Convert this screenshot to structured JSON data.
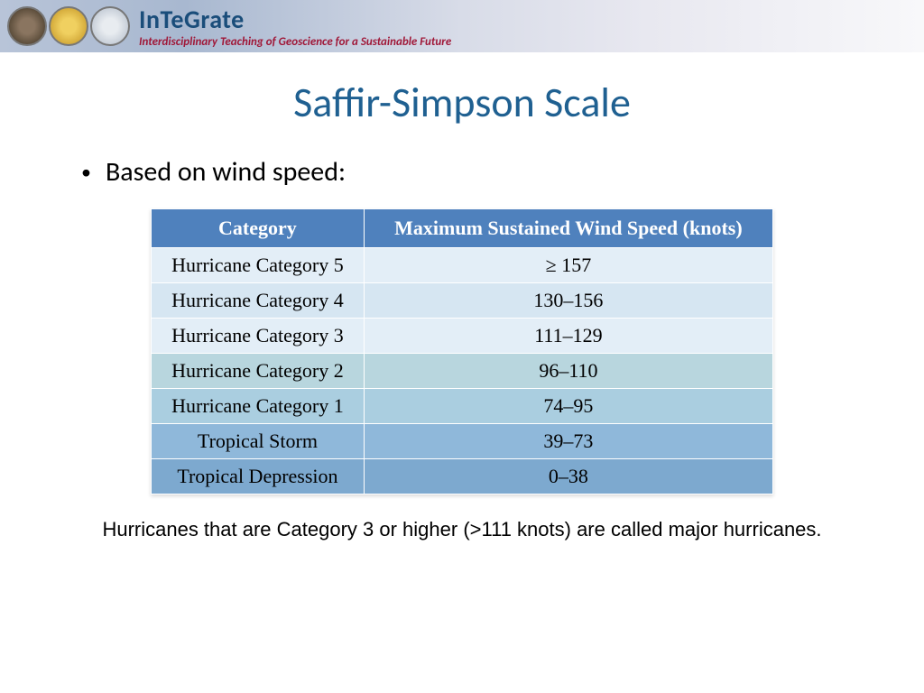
{
  "header": {
    "brand_name": "InTeGrate",
    "tagline": "Interdisciplinary Teaching of Geoscience for a Sustainable Future",
    "brand_color": "#1a4d7a",
    "tagline_color": "#a01838"
  },
  "slide": {
    "title": "Saffir-Simpson Scale",
    "title_color": "#1f6091",
    "bullet_text": "Based on wind speed:",
    "caption": "Hurricanes that are Category 3 or higher (>111 knots) are called major hurricanes."
  },
  "table": {
    "type": "table",
    "header_bg": "#4f81bd",
    "header_text_color": "#ffffff",
    "border_color": "#ffffff",
    "columns": [
      "Category",
      "Maximum Sustained Wind Speed (knots)"
    ],
    "rows": [
      {
        "category": "Hurricane Category 5",
        "speed": "≥ 157",
        "bg": "#e3eef7"
      },
      {
        "category": "Hurricane Category 4",
        "speed": "130–156",
        "bg": "#d6e6f2"
      },
      {
        "category": "Hurricane Category 3",
        "speed": "111–129",
        "bg": "#e3eef7"
      },
      {
        "category": "Hurricane Category 2",
        "speed": "96–110",
        "bg": "#b8d6de"
      },
      {
        "category": "Hurricane Category 1",
        "speed": "74–95",
        "bg": "#aacee0"
      },
      {
        "category": "Tropical Storm",
        "speed": "39–73",
        "bg": "#8fb8da"
      },
      {
        "category": "Tropical Depression",
        "speed": "0–38",
        "bg": "#7da9cf"
      }
    ]
  }
}
